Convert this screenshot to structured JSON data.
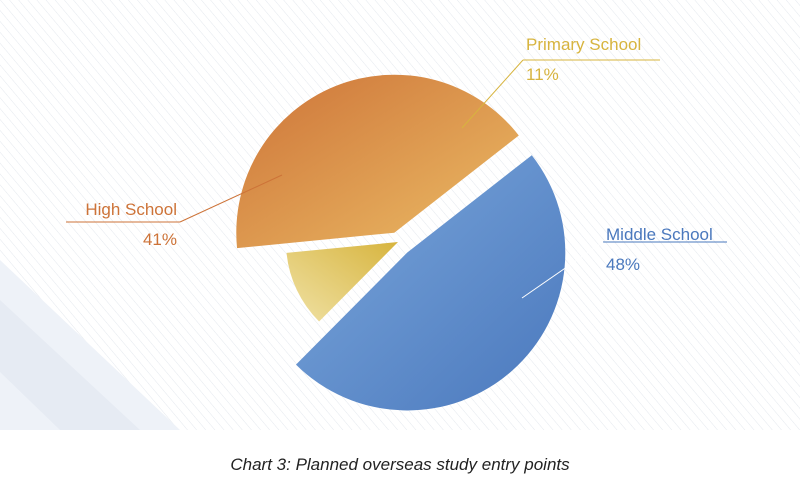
{
  "caption": "Chart 3: Planned overseas study entry points",
  "chart_data": {
    "type": "pie",
    "title": "Chart 3: Planned overseas study entry points",
    "legend": "none",
    "slices": [
      {
        "label": "Middle School",
        "value": 48,
        "value_label": "48%",
        "color": "#4a78bd",
        "color_light": "#7ca8dc"
      },
      {
        "label": "Primary School",
        "value": 11,
        "value_label": "11%",
        "color": "#d7b43e",
        "color_light": "#f0e2a6"
      },
      {
        "label": "High School",
        "value": 41,
        "value_label": "41%",
        "color": "#cd7338",
        "color_light": "#ecbd66"
      }
    ]
  }
}
